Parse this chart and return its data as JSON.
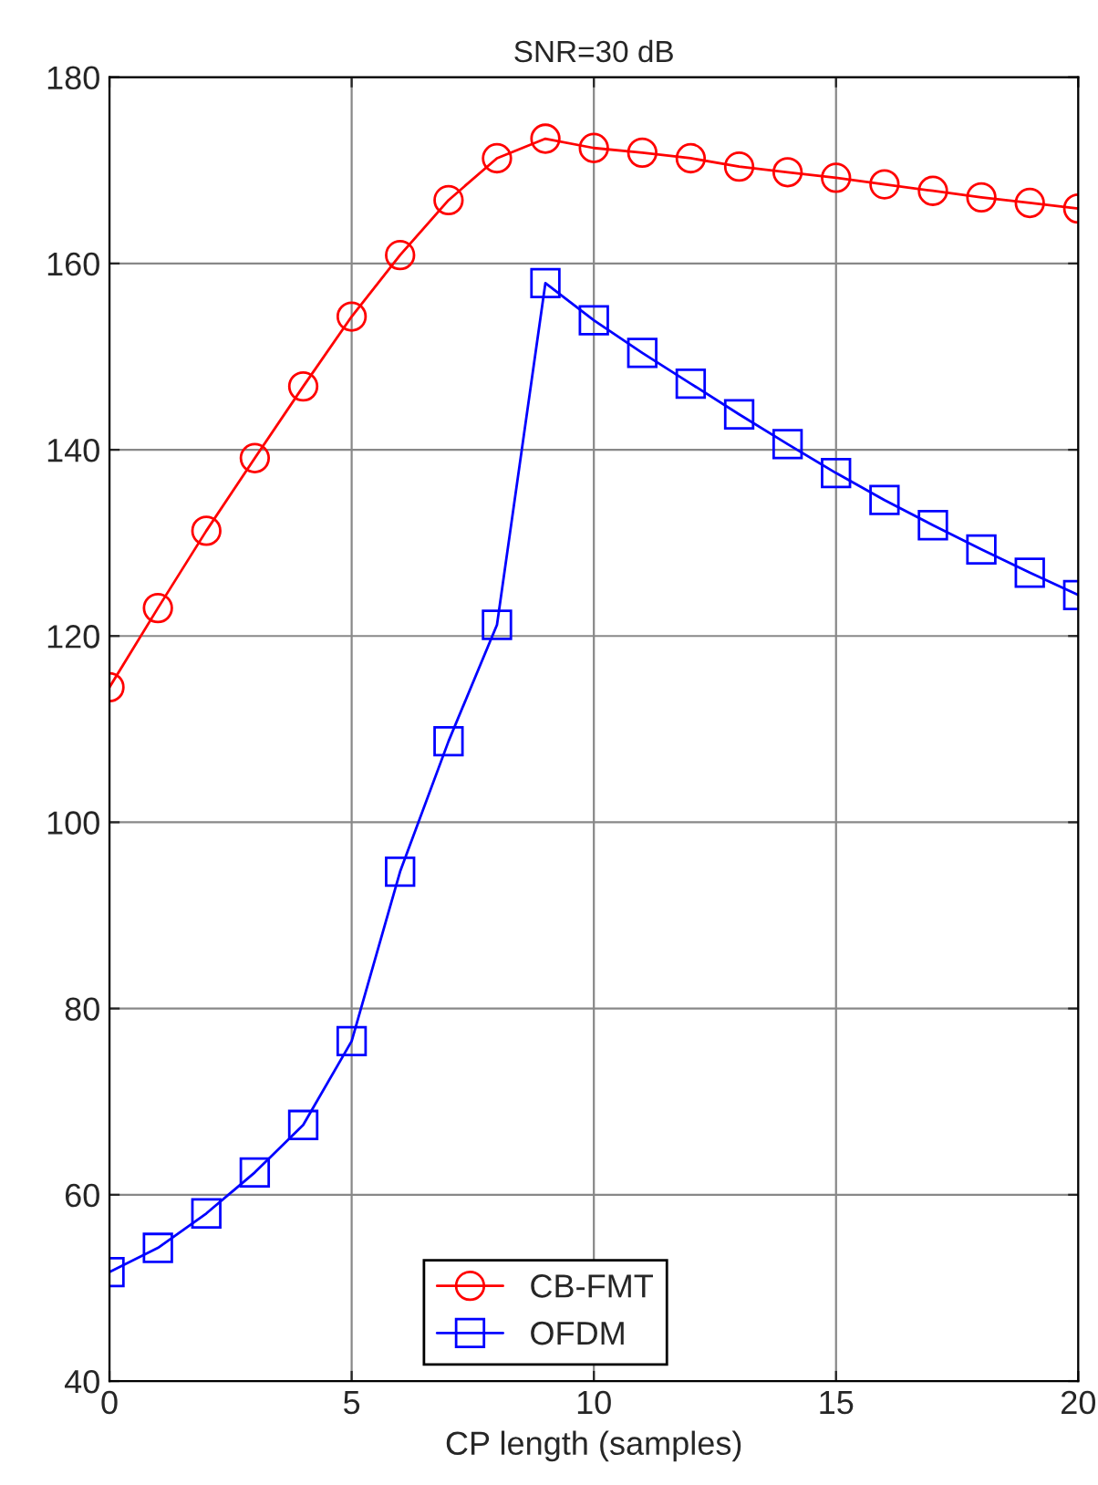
{
  "chart_data": {
    "type": "line",
    "title": "SNR=30 dB",
    "xlabel": "CP length (samples)",
    "x": [
      0,
      1,
      2,
      3,
      4,
      5,
      6,
      7,
      8,
      9,
      10,
      11,
      12,
      13,
      14,
      15,
      16,
      17,
      18,
      19,
      20
    ],
    "series": [
      {
        "name": "CB-FMT",
        "color": "#ff0000",
        "marker": "circle",
        "values": [
          114.5,
          123.0,
          131.3,
          139.1,
          146.8,
          154.3,
          160.9,
          166.8,
          171.3,
          173.4,
          172.4,
          171.9,
          171.3,
          170.4,
          169.8,
          169.2,
          168.5,
          167.8,
          167.1,
          166.5,
          165.9
        ]
      },
      {
        "name": "OFDM",
        "color": "#0000ff",
        "marker": "square",
        "values": [
          51.7,
          54.3,
          58.0,
          62.4,
          67.5,
          76.5,
          94.7,
          108.7,
          121.2,
          157.9,
          153.9,
          150.4,
          147.1,
          143.8,
          140.6,
          137.5,
          134.6,
          131.9,
          129.3,
          126.8,
          124.4
        ]
      }
    ],
    "xlim": [
      0,
      20
    ],
    "xticks": [
      0,
      5,
      10,
      15,
      20
    ],
    "ylim": [
      40,
      180
    ],
    "yticks": [
      40,
      60,
      80,
      100,
      120,
      140,
      160,
      180
    ],
    "grid": true,
    "legend": "bottom",
    "line_style": "solid"
  }
}
